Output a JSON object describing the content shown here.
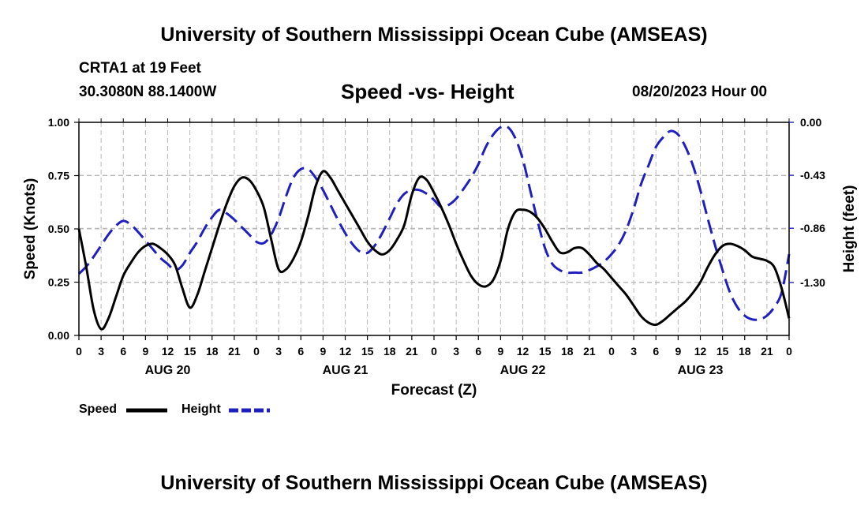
{
  "header": {
    "title": "University of Southern Mississippi Ocean Cube (AMSEAS)",
    "station": "CRTA1 at 19 Feet",
    "coords": "30.3080N  88.1400W",
    "subtitle": "Speed -vs- Height",
    "datetime": "08/20/2023 Hour 00"
  },
  "footer": {
    "title": "University of Southern Mississippi Ocean Cube (AMSEAS)"
  },
  "chart_data": {
    "type": "line",
    "xlabel": "Forecast (Z)",
    "ylabel_left": "Speed (Knots)",
    "ylabel_right": "Height (feet)",
    "xlim": [
      0,
      96
    ],
    "ylim_left": [
      0,
      1
    ],
    "ylim_right": [
      -1.73,
      0
    ],
    "x_ticks": [
      0,
      3,
      6,
      9,
      12,
      15,
      18,
      21,
      24,
      27,
      30,
      33,
      36,
      39,
      42,
      45,
      48,
      51,
      54,
      57,
      60,
      63,
      66,
      69,
      72,
      75,
      78,
      81,
      84,
      87,
      90,
      93,
      96
    ],
    "x_tick_labels": [
      "0",
      "3",
      "6",
      "9",
      "12",
      "15",
      "18",
      "21",
      "0",
      "3",
      "6",
      "9",
      "12",
      "15",
      "18",
      "21",
      "0",
      "3",
      "6",
      "9",
      "12",
      "15",
      "18",
      "21",
      "0",
      "3",
      "6",
      "9",
      "12",
      "15",
      "18",
      "21",
      "0"
    ],
    "day_labels": [
      {
        "x": 12,
        "label": "AUG 20"
      },
      {
        "x": 36,
        "label": "AUG 21"
      },
      {
        "x": 60,
        "label": "AUG 22"
      },
      {
        "x": 84,
        "label": "AUG 23"
      }
    ],
    "y_ticks_left": [
      0,
      0.25,
      0.5,
      0.75,
      1
    ],
    "y_tick_labels_left": [
      "0.00",
      "0.25",
      "0.50",
      "0.75",
      "1.00"
    ],
    "y_ticks_right": [
      0,
      -0.43,
      -0.86,
      -1.3
    ],
    "y_tick_labels_right": [
      "0.00",
      "-0.43",
      "-0.86",
      "-1.30"
    ],
    "grid": true,
    "legend": [
      "Speed",
      "Height"
    ],
    "series": [
      {
        "name": "Speed",
        "axis": "left",
        "color": "#000000",
        "style": "solid",
        "x": [
          0,
          1,
          2,
          3,
          4,
          5,
          6,
          7,
          8,
          9,
          10,
          11,
          12,
          13,
          14,
          15,
          16,
          17,
          18,
          19,
          20,
          21,
          22,
          23,
          24,
          25,
          26,
          27,
          28,
          29,
          30,
          31,
          32,
          33,
          34,
          35,
          36,
          37,
          38,
          39,
          40,
          41,
          42,
          43,
          44,
          45,
          46,
          47,
          48,
          49,
          50,
          51,
          52,
          53,
          54,
          55,
          56,
          57,
          58,
          59,
          60,
          61,
          62,
          63,
          64,
          65,
          66,
          67,
          68,
          69,
          70,
          71,
          72,
          73,
          74,
          75,
          76,
          77,
          78,
          79,
          80,
          81,
          82,
          83,
          84,
          85,
          86,
          87,
          88,
          89,
          90,
          91,
          92,
          93,
          94,
          95,
          96
        ],
        "values": [
          0.5,
          0.32,
          0.12,
          0.03,
          0.08,
          0.18,
          0.28,
          0.34,
          0.39,
          0.42,
          0.43,
          0.41,
          0.38,
          0.33,
          0.22,
          0.13,
          0.19,
          0.3,
          0.41,
          0.52,
          0.62,
          0.7,
          0.74,
          0.73,
          0.68,
          0.6,
          0.45,
          0.31,
          0.31,
          0.36,
          0.44,
          0.56,
          0.7,
          0.77,
          0.74,
          0.68,
          0.62,
          0.56,
          0.5,
          0.44,
          0.4,
          0.38,
          0.4,
          0.45,
          0.52,
          0.66,
          0.74,
          0.73,
          0.67,
          0.6,
          0.52,
          0.43,
          0.35,
          0.28,
          0.24,
          0.23,
          0.26,
          0.35,
          0.5,
          0.58,
          0.59,
          0.58,
          0.55,
          0.5,
          0.44,
          0.39,
          0.39,
          0.41,
          0.41,
          0.38,
          0.34,
          0.31,
          0.27,
          0.23,
          0.19,
          0.14,
          0.09,
          0.06,
          0.05,
          0.07,
          0.1,
          0.13,
          0.16,
          0.2,
          0.25,
          0.32,
          0.38,
          0.42,
          0.43,
          0.42,
          0.4,
          0.37,
          0.36,
          0.35,
          0.32,
          0.22,
          0.08
        ]
      },
      {
        "name": "Height",
        "axis": "right",
        "color": "#1f1fbf",
        "style": "dashed",
        "x": [
          0,
          1,
          2,
          3,
          4,
          5,
          6,
          7,
          8,
          9,
          10,
          11,
          12,
          13,
          14,
          15,
          16,
          17,
          18,
          19,
          20,
          21,
          22,
          23,
          24,
          25,
          26,
          27,
          28,
          29,
          30,
          31,
          32,
          33,
          34,
          35,
          36,
          37,
          38,
          39,
          40,
          41,
          42,
          43,
          44,
          45,
          46,
          47,
          48,
          49,
          50,
          51,
          52,
          53,
          54,
          55,
          56,
          57,
          58,
          59,
          60,
          61,
          62,
          63,
          64,
          65,
          66,
          67,
          68,
          69,
          70,
          71,
          72,
          73,
          74,
          75,
          76,
          77,
          78,
          79,
          80,
          81,
          82,
          83,
          84,
          85,
          86,
          87,
          88,
          89,
          90,
          91,
          92,
          93,
          94,
          95,
          96
        ],
        "values": [
          -1.23,
          -1.17,
          -1.09,
          -1.0,
          -0.91,
          -0.84,
          -0.8,
          -0.83,
          -0.89,
          -0.96,
          -1.03,
          -1.1,
          -1.15,
          -1.2,
          -1.16,
          -1.06,
          -0.97,
          -0.86,
          -0.77,
          -0.71,
          -0.74,
          -0.79,
          -0.85,
          -0.91,
          -0.97,
          -0.98,
          -0.91,
          -0.78,
          -0.6,
          -0.45,
          -0.38,
          -0.38,
          -0.45,
          -0.55,
          -0.67,
          -0.79,
          -0.9,
          -0.99,
          -1.05,
          -1.06,
          -1.0,
          -0.9,
          -0.78,
          -0.66,
          -0.58,
          -0.55,
          -0.55,
          -0.58,
          -0.63,
          -0.69,
          -0.67,
          -0.62,
          -0.54,
          -0.45,
          -0.34,
          -0.2,
          -0.1,
          -0.04,
          -0.04,
          -0.13,
          -0.3,
          -0.55,
          -0.8,
          -1.02,
          -1.15,
          -1.2,
          -1.22,
          -1.22,
          -1.22,
          -1.2,
          -1.17,
          -1.13,
          -1.07,
          -0.99,
          -0.87,
          -0.7,
          -0.5,
          -0.35,
          -0.2,
          -0.12,
          -0.07,
          -0.1,
          -0.2,
          -0.35,
          -0.55,
          -0.78,
          -1.0,
          -1.2,
          -1.38,
          -1.5,
          -1.57,
          -1.6,
          -1.6,
          -1.57,
          -1.5,
          -1.38,
          -1.07
        ]
      }
    ]
  }
}
